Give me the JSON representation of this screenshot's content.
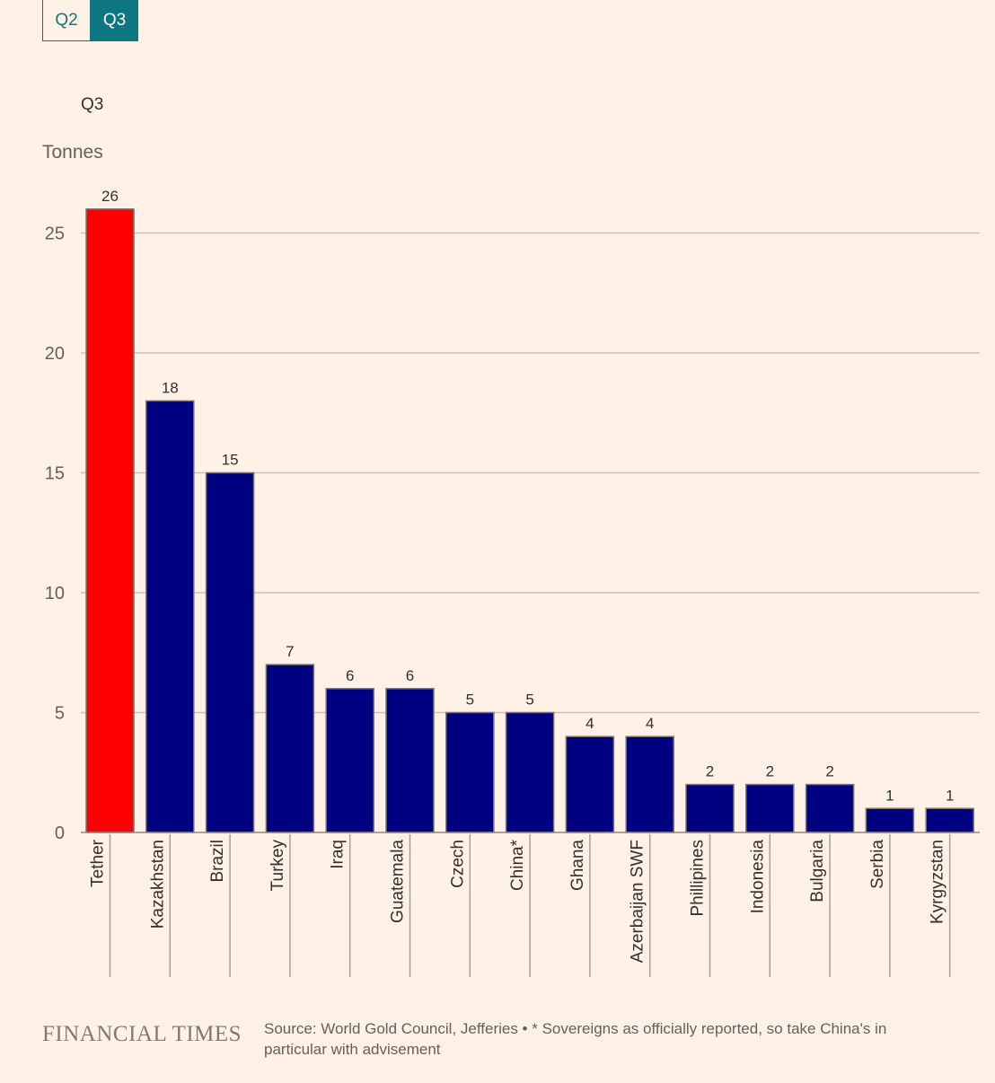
{
  "tabs": [
    {
      "label": "Q2",
      "active": false
    },
    {
      "label": "Q3",
      "active": true
    }
  ],
  "subtitle": "Q3",
  "unit_label": "Tonnes",
  "chart_data": {
    "type": "bar",
    "title": "",
    "xlabel": "",
    "ylabel": "Tonnes",
    "ylim": [
      0,
      25
    ],
    "yticks": [
      0,
      5,
      10,
      15,
      20,
      25
    ],
    "grid": true,
    "categories": [
      "Tether",
      "Kazakhstan",
      "Brazil",
      "Turkey",
      "Iraq",
      "Guatemala",
      "Czech",
      "China*",
      "Ghana",
      "Azerbaijan SWF",
      "Phillipines",
      "Indonesia",
      "Bulgaria",
      "Serbia",
      "Kyrgyzstan"
    ],
    "values": [
      26,
      18,
      15,
      7,
      6,
      6,
      5,
      5,
      4,
      4,
      2,
      2,
      2,
      1,
      1
    ],
    "colors": [
      "#ff0000",
      "#000080",
      "#000080",
      "#000080",
      "#000080",
      "#000080",
      "#000080",
      "#000080",
      "#000080",
      "#000080",
      "#000080",
      "#000080",
      "#000080",
      "#000080",
      "#000080"
    ]
  },
  "colors": {
    "background": "#fff1e5",
    "highlight": "#ff0000",
    "bar": "#000080",
    "accent": "#0d7680",
    "grid": "#ccc1b7"
  },
  "footer": {
    "brand": "FINANCIAL TIMES",
    "source": "Source: World Gold Council, Jefferies • * Sovereigns as officially reported, so take China's in particular with advisement"
  }
}
